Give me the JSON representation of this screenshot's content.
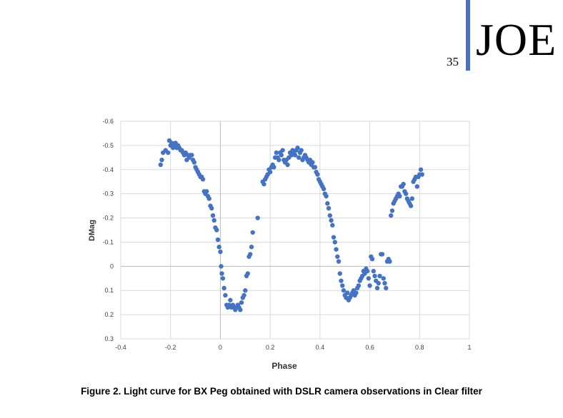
{
  "header": {
    "page_number": "35",
    "journal": "JOE"
  },
  "caption": "Figure 2. Light curve for BX Peg obtained with DSLR camera observations in Clear filter",
  "colors": {
    "points": "#4472c4",
    "grid": "#d9d9d9",
    "axis": "#bfbfbf",
    "header_bar": "#4a6fc3"
  },
  "chart_data": {
    "type": "scatter",
    "title": "",
    "xlabel": "Phase",
    "ylabel": "DMag",
    "xlim": [
      -0.4,
      1.0
    ],
    "ylim": [
      0.3,
      -0.6
    ],
    "y_inverted": true,
    "grid": true,
    "x_ticks": [
      "-0.4",
      "-0.2",
      "0",
      "0.2",
      "0.4",
      "0.6",
      "0.8",
      "1"
    ],
    "y_ticks": [
      "-0.6",
      "-0.5",
      "-0.4",
      "-0.3",
      "-0.2",
      "-0.1",
      "0",
      "0.1",
      "0.2",
      "0.3"
    ],
    "points": [
      [
        -0.24,
        -0.42
      ],
      [
        -0.235,
        -0.44
      ],
      [
        -0.23,
        -0.47
      ],
      [
        -0.22,
        -0.48
      ],
      [
        -0.21,
        -0.47
      ],
      [
        -0.205,
        -0.52
      ],
      [
        -0.2,
        -0.5
      ],
      [
        -0.195,
        -0.51
      ],
      [
        -0.19,
        -0.49
      ],
      [
        -0.185,
        -0.5
      ],
      [
        -0.18,
        -0.51
      ],
      [
        -0.175,
        -0.49
      ],
      [
        -0.17,
        -0.5
      ],
      [
        -0.165,
        -0.49
      ],
      [
        -0.16,
        -0.48
      ],
      [
        -0.155,
        -0.48
      ],
      [
        -0.15,
        -0.47
      ],
      [
        -0.145,
        -0.46
      ],
      [
        -0.14,
        -0.47
      ],
      [
        -0.135,
        -0.44
      ],
      [
        -0.13,
        -0.46
      ],
      [
        -0.125,
        -0.45
      ],
      [
        -0.12,
        -0.46
      ],
      [
        -0.115,
        -0.46
      ],
      [
        -0.11,
        -0.44
      ],
      [
        -0.105,
        -0.43
      ],
      [
        -0.1,
        -0.41
      ],
      [
        -0.095,
        -0.4
      ],
      [
        -0.09,
        -0.39
      ],
      [
        -0.085,
        -0.38
      ],
      [
        -0.08,
        -0.37
      ],
      [
        -0.075,
        -0.37
      ],
      [
        -0.07,
        -0.36
      ],
      [
        -0.065,
        -0.31
      ],
      [
        -0.06,
        -0.3
      ],
      [
        -0.055,
        -0.31
      ],
      [
        -0.05,
        -0.29
      ],
      [
        -0.045,
        -0.28
      ],
      [
        -0.04,
        -0.25
      ],
      [
        -0.035,
        -0.24
      ],
      [
        -0.03,
        -0.21
      ],
      [
        -0.025,
        -0.19
      ],
      [
        -0.02,
        -0.16
      ],
      [
        -0.015,
        -0.15
      ],
      [
        -0.01,
        -0.11
      ],
      [
        -0.005,
        -0.08
      ],
      [
        0.0,
        -0.06
      ],
      [
        0.003,
        0.0
      ],
      [
        0.006,
        0.03
      ],
      [
        0.01,
        0.05
      ],
      [
        0.015,
        0.09
      ],
      [
        0.02,
        0.12
      ],
      [
        0.025,
        0.16
      ],
      [
        0.03,
        0.17
      ],
      [
        0.035,
        0.16
      ],
      [
        0.04,
        0.14
      ],
      [
        0.045,
        0.17
      ],
      [
        0.05,
        0.16
      ],
      [
        0.055,
        0.17
      ],
      [
        0.06,
        0.18
      ],
      [
        0.065,
        0.17
      ],
      [
        0.07,
        0.16
      ],
      [
        0.075,
        0.17
      ],
      [
        0.08,
        0.18
      ],
      [
        0.085,
        0.15
      ],
      [
        0.09,
        0.13
      ],
      [
        0.095,
        0.12
      ],
      [
        0.1,
        0.1
      ],
      [
        0.105,
        0.04
      ],
      [
        0.11,
        0.03
      ],
      [
        0.115,
        -0.04
      ],
      [
        0.12,
        -0.05
      ],
      [
        0.125,
        -0.08
      ],
      [
        0.13,
        -0.14
      ],
      [
        0.15,
        -0.2
      ],
      [
        0.17,
        -0.35
      ],
      [
        0.175,
        -0.34
      ],
      [
        0.18,
        -0.36
      ],
      [
        0.185,
        -0.37
      ],
      [
        0.19,
        -0.38
      ],
      [
        0.195,
        -0.4
      ],
      [
        0.2,
        -0.39
      ],
      [
        0.205,
        -0.41
      ],
      [
        0.21,
        -0.42
      ],
      [
        0.215,
        -0.41
      ],
      [
        0.22,
        -0.45
      ],
      [
        0.225,
        -0.47
      ],
      [
        0.23,
        -0.45
      ],
      [
        0.235,
        -0.44
      ],
      [
        0.24,
        -0.47
      ],
      [
        0.245,
        -0.46
      ],
      [
        0.25,
        -0.48
      ],
      [
        0.255,
        -0.44
      ],
      [
        0.26,
        -0.43
      ],
      [
        0.265,
        -0.44
      ],
      [
        0.27,
        -0.42
      ],
      [
        0.275,
        -0.45
      ],
      [
        0.28,
        -0.47
      ],
      [
        0.285,
        -0.46
      ],
      [
        0.29,
        -0.48
      ],
      [
        0.295,
        -0.47
      ],
      [
        0.3,
        -0.46
      ],
      [
        0.305,
        -0.48
      ],
      [
        0.31,
        -0.49
      ],
      [
        0.315,
        -0.45
      ],
      [
        0.32,
        -0.47
      ],
      [
        0.325,
        -0.48
      ],
      [
        0.33,
        -0.44
      ],
      [
        0.335,
        -0.45
      ],
      [
        0.34,
        -0.46
      ],
      [
        0.345,
        -0.45
      ],
      [
        0.35,
        -0.44
      ],
      [
        0.355,
        -0.43
      ],
      [
        0.36,
        -0.44
      ],
      [
        0.365,
        -0.42
      ],
      [
        0.37,
        -0.43
      ],
      [
        0.375,
        -0.41
      ],
      [
        0.38,
        -0.41
      ],
      [
        0.385,
        -0.39
      ],
      [
        0.39,
        -0.38
      ],
      [
        0.395,
        -0.36
      ],
      [
        0.4,
        -0.35
      ],
      [
        0.405,
        -0.34
      ],
      [
        0.41,
        -0.33
      ],
      [
        0.415,
        -0.32
      ],
      [
        0.42,
        -0.3
      ],
      [
        0.425,
        -0.29
      ],
      [
        0.43,
        -0.26
      ],
      [
        0.435,
        -0.24
      ],
      [
        0.44,
        -0.21
      ],
      [
        0.445,
        -0.19
      ],
      [
        0.45,
        -0.17
      ],
      [
        0.455,
        -0.12
      ],
      [
        0.46,
        -0.1
      ],
      [
        0.465,
        -0.07
      ],
      [
        0.47,
        -0.04
      ],
      [
        0.475,
        -0.02
      ],
      [
        0.48,
        0.03
      ],
      [
        0.485,
        0.06
      ],
      [
        0.49,
        0.08
      ],
      [
        0.495,
        0.1
      ],
      [
        0.5,
        0.12
      ],
      [
        0.505,
        0.13
      ],
      [
        0.51,
        0.11
      ],
      [
        0.515,
        0.14
      ],
      [
        0.52,
        0.13
      ],
      [
        0.525,
        0.12
      ],
      [
        0.53,
        0.11
      ],
      [
        0.535,
        0.1
      ],
      [
        0.54,
        0.12
      ],
      [
        0.545,
        0.11
      ],
      [
        0.55,
        0.09
      ],
      [
        0.555,
        0.08
      ],
      [
        0.56,
        0.06
      ],
      [
        0.565,
        0.05
      ],
      [
        0.57,
        0.04
      ],
      [
        0.575,
        0.02
      ],
      [
        0.58,
        0.03
      ],
      [
        0.585,
        0.01
      ],
      [
        0.59,
        0.02
      ],
      [
        0.595,
        0.05
      ],
      [
        0.6,
        0.08
      ],
      [
        0.605,
        -0.04
      ],
      [
        0.61,
        -0.03
      ],
      [
        0.615,
        0.02
      ],
      [
        0.62,
        0.04
      ],
      [
        0.625,
        0.06
      ],
      [
        0.63,
        0.09
      ],
      [
        0.635,
        0.07
      ],
      [
        0.64,
        0.04
      ],
      [
        0.645,
        -0.05
      ],
      [
        0.65,
        -0.05
      ],
      [
        0.655,
        0.05
      ],
      [
        0.66,
        0.07
      ],
      [
        0.665,
        0.09
      ],
      [
        0.67,
        -0.02
      ],
      [
        0.675,
        -0.03
      ],
      [
        0.68,
        -0.02
      ],
      [
        0.685,
        -0.21
      ],
      [
        0.69,
        -0.23
      ],
      [
        0.695,
        -0.26
      ],
      [
        0.7,
        -0.27
      ],
      [
        0.705,
        -0.28
      ],
      [
        0.71,
        -0.29
      ],
      [
        0.715,
        -0.3
      ],
      [
        0.72,
        -0.29
      ],
      [
        0.725,
        -0.33
      ],
      [
        0.73,
        -0.33
      ],
      [
        0.735,
        -0.34
      ],
      [
        0.74,
        -0.31
      ],
      [
        0.745,
        -0.3
      ],
      [
        0.75,
        -0.28
      ],
      [
        0.755,
        -0.27
      ],
      [
        0.76,
        -0.26
      ],
      [
        0.765,
        -0.25
      ],
      [
        0.77,
        -0.28
      ],
      [
        0.775,
        -0.35
      ],
      [
        0.78,
        -0.36
      ],
      [
        0.785,
        -0.37
      ],
      [
        0.79,
        -0.33
      ],
      [
        0.795,
        -0.37
      ],
      [
        0.8,
        -0.38
      ],
      [
        0.805,
        -0.4
      ],
      [
        0.81,
        -0.38
      ]
    ]
  }
}
